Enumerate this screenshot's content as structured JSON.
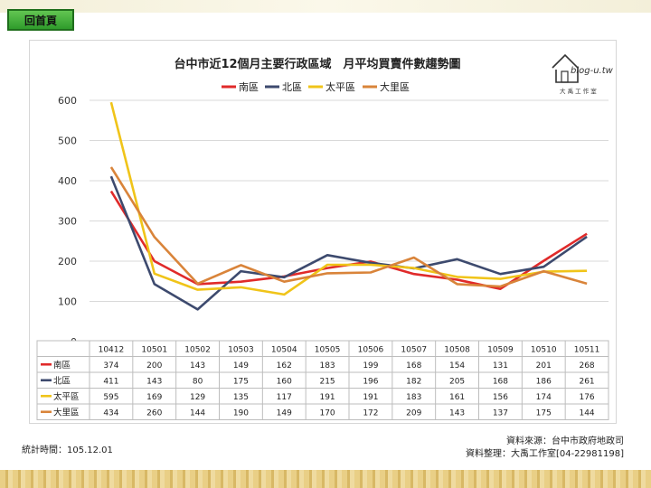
{
  "nav": {
    "home_label": "回首頁"
  },
  "footer": {
    "stat_time": "統計時間：105.12.01",
    "source": "資料來源：台中市政府地政司",
    "compiled": "資料整理：大禹工作室[04-22981198]"
  },
  "logo": {
    "brand": "blog-u.tw",
    "sub": "大 禹 工 作 室"
  },
  "chart_data": {
    "type": "line",
    "title": "台中市近12個月主要行政區域　月平均買賣件數趨勢圖",
    "xlabel": "",
    "ylabel": "",
    "categories": [
      "10412",
      "10501",
      "10502",
      "10503",
      "10504",
      "10505",
      "10506",
      "10507",
      "10508",
      "10509",
      "10510",
      "10511"
    ],
    "ylim": [
      0,
      600
    ],
    "yticks": [
      0,
      100,
      200,
      300,
      400,
      500,
      600
    ],
    "grid": true,
    "legend": "top-center",
    "series": [
      {
        "name": "南區",
        "color": "#e02a2a",
        "values": [
          374,
          200,
          143,
          149,
          162,
          183,
          199,
          168,
          154,
          131,
          201,
          268
        ]
      },
      {
        "name": "北區",
        "color": "#3d4a6e",
        "values": [
          411,
          143,
          80,
          175,
          160,
          215,
          196,
          182,
          205,
          168,
          186,
          261
        ]
      },
      {
        "name": "太平區",
        "color": "#f0c419",
        "values": [
          595,
          169,
          129,
          135,
          117,
          191,
          191,
          183,
          161,
          156,
          174,
          176
        ]
      },
      {
        "name": "大里區",
        "color": "#d9843a",
        "values": [
          434,
          260,
          144,
          190,
          149,
          170,
          172,
          209,
          143,
          137,
          175,
          144
        ]
      }
    ]
  }
}
